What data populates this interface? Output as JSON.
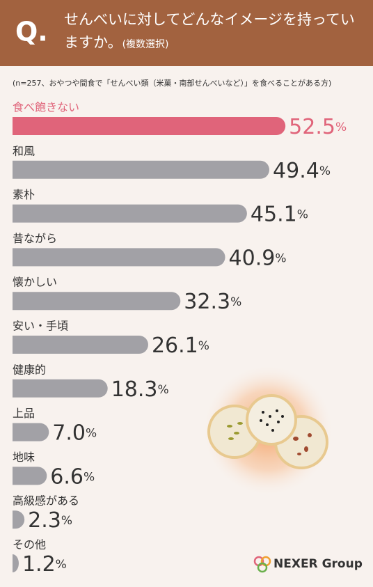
{
  "header": {
    "q": "Q.",
    "question": "せんべいに対してどんなイメージを持っていますか。",
    "note": "(複数選択)"
  },
  "chart_data": {
    "type": "bar",
    "orientation": "horizontal",
    "subtitle": "(n=257、おやつや間食で「せんべい類（米菓・南部せんべいなど）」を食べることがある方)",
    "categories": [
      "食べ飽きない",
      "和風",
      "素朴",
      "昔ながら",
      "懐かしい",
      "安い・手頃",
      "健康的",
      "上品",
      "地味",
      "高級感がある",
      "その他"
    ],
    "values": [
      52.5,
      49.4,
      45.1,
      40.9,
      32.3,
      26.1,
      18.3,
      7.0,
      6.6,
      2.3,
      1.2
    ],
    "value_labels": [
      "52.5",
      "49.4",
      "45.1",
      "40.9",
      "32.3",
      "26.1",
      "18.3",
      "7.0",
      "6.6",
      "2.3",
      "1.2"
    ],
    "unit": "%",
    "colors": [
      "#e0647a",
      "#a2a1a6",
      "#a2a1a6",
      "#a2a1a6",
      "#a2a1a6",
      "#a2a1a6",
      "#a2a1a6",
      "#a2a1a6",
      "#a2a1a6",
      "#a2a1a6",
      "#a2a1a6"
    ]
  },
  "logo": "NEXER Group"
}
